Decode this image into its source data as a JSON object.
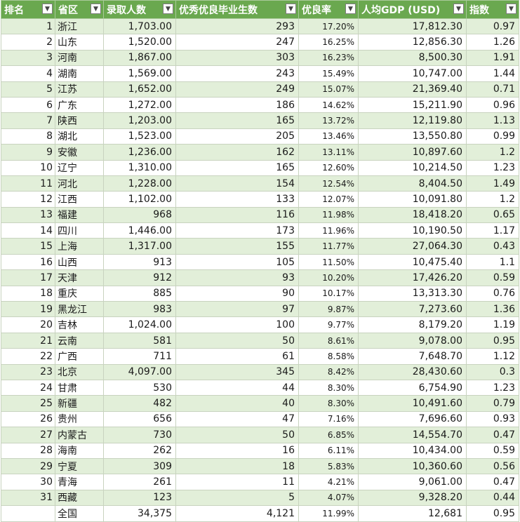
{
  "headers": [
    "排名",
    "省区",
    "录取人数",
    "优秀优良毕业生数",
    "优良率",
    "人均GDP (USD)",
    "指数"
  ],
  "filter_icon": "dropdown-filter-icon",
  "colors": {
    "header_bg": "#6aa84f",
    "band_row_bg": "#e2efd9",
    "plain_row_bg": "#ffffff"
  },
  "rows": [
    {
      "rank": "1",
      "province": "浙江",
      "admitted": "1,703.00",
      "excellent": "293",
      "rate": "17.20%",
      "gdp": "17,812.30",
      "index": "0.97"
    },
    {
      "rank": "2",
      "province": "山东",
      "admitted": "1,520.00",
      "excellent": "247",
      "rate": "16.25%",
      "gdp": "12,856.30",
      "index": "1.26"
    },
    {
      "rank": "3",
      "province": "河南",
      "admitted": "1,867.00",
      "excellent": "303",
      "rate": "16.23%",
      "gdp": "8,500.30",
      "index": "1.91"
    },
    {
      "rank": "4",
      "province": "湖南",
      "admitted": "1,569.00",
      "excellent": "243",
      "rate": "15.49%",
      "gdp": "10,747.00",
      "index": "1.44"
    },
    {
      "rank": "5",
      "province": "江苏",
      "admitted": "1,652.00",
      "excellent": "249",
      "rate": "15.07%",
      "gdp": "21,369.40",
      "index": "0.71"
    },
    {
      "rank": "6",
      "province": "广东",
      "admitted": "1,272.00",
      "excellent": "186",
      "rate": "14.62%",
      "gdp": "15,211.90",
      "index": "0.96"
    },
    {
      "rank": "7",
      "province": "陕西",
      "admitted": "1,203.00",
      "excellent": "165",
      "rate": "13.72%",
      "gdp": "12,119.80",
      "index": "1.13"
    },
    {
      "rank": "8",
      "province": "湖北",
      "admitted": "1,523.00",
      "excellent": "205",
      "rate": "13.46%",
      "gdp": "13,550.80",
      "index": "0.99"
    },
    {
      "rank": "9",
      "province": "安徽",
      "admitted": "1,236.00",
      "excellent": "162",
      "rate": "13.11%",
      "gdp": "10,897.60",
      "index": "1.2"
    },
    {
      "rank": "10",
      "province": "辽宁",
      "admitted": "1,310.00",
      "excellent": "165",
      "rate": "12.60%",
      "gdp": "10,214.50",
      "index": "1.23"
    },
    {
      "rank": "11",
      "province": "河北",
      "admitted": "1,228.00",
      "excellent": "154",
      "rate": "12.54%",
      "gdp": "8,404.50",
      "index": "1.49"
    },
    {
      "rank": "12",
      "province": "江西",
      "admitted": "1,102.00",
      "excellent": "133",
      "rate": "12.07%",
      "gdp": "10,091.80",
      "index": "1.2"
    },
    {
      "rank": "13",
      "province": "福建",
      "admitted": "968",
      "excellent": "116",
      "rate": "11.98%",
      "gdp": "18,418.20",
      "index": "0.65"
    },
    {
      "rank": "14",
      "province": "四川",
      "admitted": "1,446.00",
      "excellent": "173",
      "rate": "11.96%",
      "gdp": "10,190.50",
      "index": "1.17"
    },
    {
      "rank": "15",
      "province": "上海",
      "admitted": "1,317.00",
      "excellent": "155",
      "rate": "11.77%",
      "gdp": "27,064.30",
      "index": "0.43"
    },
    {
      "rank": "16",
      "province": "山西",
      "admitted": "913",
      "excellent": "105",
      "rate": "11.50%",
      "gdp": "10,475.40",
      "index": "1.1"
    },
    {
      "rank": "17",
      "province": "天津",
      "admitted": "912",
      "excellent": "93",
      "rate": "10.20%",
      "gdp": "17,426.20",
      "index": "0.59"
    },
    {
      "rank": "18",
      "province": "重庆",
      "admitted": "885",
      "excellent": "90",
      "rate": "10.17%",
      "gdp": "13,313.30",
      "index": "0.76"
    },
    {
      "rank": "19",
      "province": "黑龙江",
      "admitted": "983",
      "excellent": "97",
      "rate": "9.87%",
      "gdp": "7,273.60",
      "index": "1.36"
    },
    {
      "rank": "20",
      "province": "吉林",
      "admitted": "1,024.00",
      "excellent": "100",
      "rate": "9.77%",
      "gdp": "8,179.20",
      "index": "1.19"
    },
    {
      "rank": "21",
      "province": "云南",
      "admitted": "581",
      "excellent": "50",
      "rate": "8.61%",
      "gdp": "9,078.00",
      "index": "0.95"
    },
    {
      "rank": "22",
      "province": "广西",
      "admitted": "711",
      "excellent": "61",
      "rate": "8.58%",
      "gdp": "7,648.70",
      "index": "1.12"
    },
    {
      "rank": "23",
      "province": "北京",
      "admitted": "4,097.00",
      "excellent": "345",
      "rate": "8.42%",
      "gdp": "28,430.60",
      "index": "0.3"
    },
    {
      "rank": "24",
      "province": "甘肃",
      "admitted": "530",
      "excellent": "44",
      "rate": "8.30%",
      "gdp": "6,754.90",
      "index": "1.23"
    },
    {
      "rank": "25",
      "province": "新疆",
      "admitted": "482",
      "excellent": "40",
      "rate": "8.30%",
      "gdp": "10,491.60",
      "index": "0.79"
    },
    {
      "rank": "26",
      "province": "贵州",
      "admitted": "656",
      "excellent": "47",
      "rate": "7.16%",
      "gdp": "7,696.60",
      "index": "0.93"
    },
    {
      "rank": "27",
      "province": "内蒙古",
      "admitted": "730",
      "excellent": "50",
      "rate": "6.85%",
      "gdp": "14,554.70",
      "index": "0.47"
    },
    {
      "rank": "28",
      "province": "海南",
      "admitted": "262",
      "excellent": "16",
      "rate": "6.11%",
      "gdp": "10,434.00",
      "index": "0.59"
    },
    {
      "rank": "29",
      "province": "宁夏",
      "admitted": "309",
      "excellent": "18",
      "rate": "5.83%",
      "gdp": "10,360.60",
      "index": "0.56"
    },
    {
      "rank": "30",
      "province": "青海",
      "admitted": "261",
      "excellent": "11",
      "rate": "4.21%",
      "gdp": "9,061.00",
      "index": "0.47"
    },
    {
      "rank": "31",
      "province": "西藏",
      "admitted": "123",
      "excellent": "5",
      "rate": "4.07%",
      "gdp": "9,328.20",
      "index": "0.44"
    },
    {
      "rank": "",
      "province": "全国",
      "admitted": "34,375",
      "excellent": "4,121",
      "rate": "11.99%",
      "gdp": "12,681",
      "index": "0.95"
    }
  ]
}
